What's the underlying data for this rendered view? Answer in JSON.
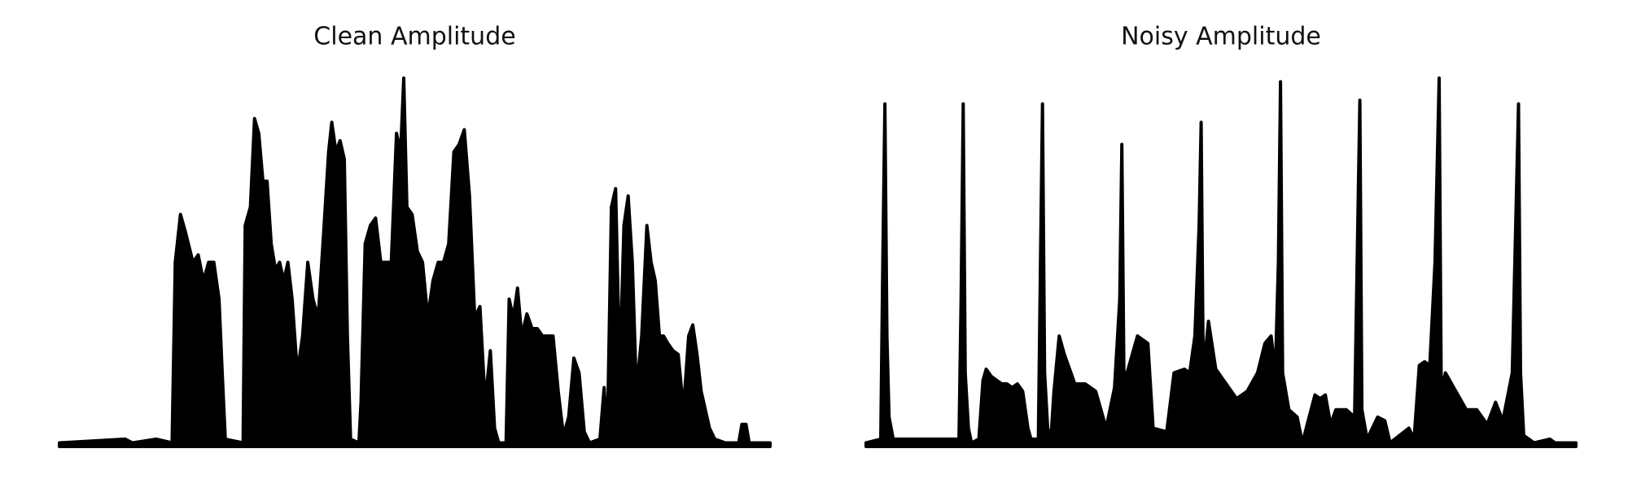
{
  "chart_data": [
    {
      "type": "area",
      "title": "Clean Amplitude",
      "color": "#000000",
      "xlim": [
        0,
        681
      ],
      "ylim": [
        0,
        1
      ],
      "x": [
        0,
        63,
        70,
        93,
        108,
        111,
        116,
        121,
        128,
        133,
        138,
        143,
        148,
        153,
        156,
        159,
        176,
        178,
        183,
        187,
        191,
        195,
        199,
        203,
        207,
        211,
        215,
        219,
        223,
        228,
        233,
        238,
        243,
        248,
        253,
        258,
        261,
        265,
        269,
        273,
        276,
        279,
        287,
        289,
        293,
        298,
        303,
        308,
        313,
        318,
        323,
        327,
        330,
        333,
        338,
        343,
        348,
        353,
        358,
        363,
        368,
        373,
        378,
        383,
        388,
        393,
        398,
        403,
        408,
        413,
        417,
        421,
        428,
        431,
        435,
        439,
        443,
        448,
        453,
        458,
        463,
        468,
        473,
        478,
        483,
        488,
        493,
        498,
        503,
        508,
        518,
        522,
        525,
        529,
        533,
        537,
        541,
        545,
        549,
        553,
        558,
        563,
        567,
        571,
        575,
        579,
        583,
        588,
        593,
        598,
        603,
        607,
        611,
        615,
        619,
        623,
        628,
        638,
        651,
        654,
        658,
        661,
        681
      ],
      "values": [
        0.01,
        0.02,
        0.01,
        0.02,
        0.01,
        0.5,
        0.63,
        0.58,
        0.5,
        0.52,
        0.45,
        0.5,
        0.5,
        0.4,
        0.2,
        0.02,
        0.01,
        0.6,
        0.65,
        0.89,
        0.85,
        0.72,
        0.72,
        0.55,
        0.48,
        0.5,
        0.45,
        0.5,
        0.4,
        0.2,
        0.3,
        0.5,
        0.4,
        0.35,
        0.57,
        0.8,
        0.88,
        0.8,
        0.83,
        0.78,
        0.3,
        0.02,
        0.01,
        0.12,
        0.55,
        0.6,
        0.62,
        0.5,
        0.5,
        0.5,
        0.85,
        0.8,
        1.0,
        0.65,
        0.63,
        0.53,
        0.5,
        0.35,
        0.45,
        0.5,
        0.5,
        0.55,
        0.8,
        0.82,
        0.86,
        0.68,
        0.35,
        0.38,
        0.12,
        0.26,
        0.05,
        0.01,
        0.01,
        0.4,
        0.35,
        0.43,
        0.3,
        0.36,
        0.32,
        0.32,
        0.3,
        0.3,
        0.3,
        0.15,
        0.03,
        0.08,
        0.24,
        0.2,
        0.04,
        0.01,
        0.02,
        0.16,
        0.01,
        0.65,
        0.7,
        0.2,
        0.6,
        0.68,
        0.5,
        0.15,
        0.3,
        0.6,
        0.5,
        0.45,
        0.3,
        0.3,
        0.28,
        0.26,
        0.25,
        0.1,
        0.3,
        0.33,
        0.25,
        0.15,
        0.1,
        0.05,
        0.02,
        0.01,
        0.01,
        0.06,
        0.06,
        0.01,
        0.01
      ]
    },
    {
      "type": "area",
      "title": "Noisy Amplitude",
      "color": "#000000",
      "xlim": [
        0,
        680
      ],
      "ylim": [
        0,
        1
      ],
      "x": [
        0,
        14,
        16,
        18,
        20,
        22,
        26,
        89,
        91,
        93,
        95,
        98,
        101,
        108,
        112,
        115,
        120,
        125,
        130,
        135,
        140,
        145,
        150,
        155,
        158,
        165,
        167,
        169,
        171,
        174,
        177,
        180,
        185,
        190,
        200,
        210,
        220,
        230,
        238,
        243,
        245,
        247,
        250,
        260,
        270,
        275,
        288,
        295,
        305,
        310,
        315,
        319,
        321,
        323,
        328,
        335,
        345,
        355,
        365,
        375,
        382,
        388,
        392,
        395,
        397,
        399,
        405,
        413,
        418,
        430,
        435,
        440,
        445,
        450,
        460,
        468,
        471,
        473,
        475,
        480,
        490,
        497,
        502,
        520,
        525,
        530,
        535,
        540,
        545,
        549,
        551,
        555,
        565,
        575,
        585,
        595,
        603,
        610,
        619,
        625,
        627,
        630,
        640,
        655,
        660,
        680
      ],
      "values": [
        0.01,
        0.02,
        0.5,
        0.93,
        0.3,
        0.08,
        0.02,
        0.02,
        0.4,
        0.93,
        0.2,
        0.05,
        0.01,
        0.02,
        0.18,
        0.21,
        0.19,
        0.18,
        0.17,
        0.17,
        0.16,
        0.17,
        0.15,
        0.05,
        0.02,
        0.02,
        0.5,
        0.93,
        0.2,
        0.05,
        0.02,
        0.15,
        0.3,
        0.25,
        0.17,
        0.17,
        0.15,
        0.05,
        0.16,
        0.4,
        0.82,
        0.2,
        0.2,
        0.3,
        0.28,
        0.05,
        0.04,
        0.2,
        0.21,
        0.2,
        0.3,
        0.6,
        0.88,
        0.2,
        0.34,
        0.21,
        0.17,
        0.13,
        0.15,
        0.2,
        0.28,
        0.3,
        0.2,
        0.5,
        0.99,
        0.2,
        0.1,
        0.08,
        0.01,
        0.14,
        0.13,
        0.14,
        0.06,
        0.1,
        0.1,
        0.08,
        0.6,
        0.94,
        0.1,
        0.02,
        0.08,
        0.07,
        0.01,
        0.05,
        0.02,
        0.22,
        0.23,
        0.22,
        0.5,
        1.0,
        0.15,
        0.2,
        0.15,
        0.1,
        0.1,
        0.06,
        0.12,
        0.07,
        0.2,
        0.93,
        0.2,
        0.03,
        0.01,
        0.02,
        0.01,
        0.01
      ]
    }
  ]
}
